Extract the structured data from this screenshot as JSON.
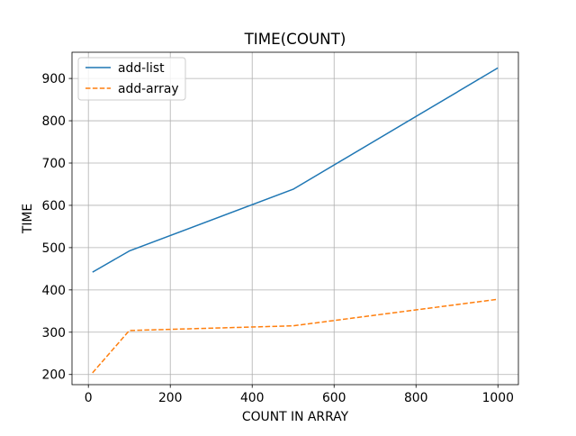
{
  "chart_data": {
    "type": "line",
    "title": "TIME(COUNT)",
    "xlabel": "COUNT IN ARRAY",
    "ylabel": "TIME",
    "xlim": [
      -40,
      1050
    ],
    "ylim": [
      176,
      962
    ],
    "xticks": [
      0,
      200,
      400,
      600,
      800,
      1000
    ],
    "yticks": [
      200,
      300,
      400,
      500,
      600,
      700,
      800,
      900
    ],
    "grid": true,
    "legend_position": "top-left",
    "series": [
      {
        "name": "add-list",
        "color": "#1f77b4",
        "style": "solid",
        "x": [
          10,
          100,
          500,
          1000
        ],
        "y": [
          442,
          492,
          638,
          925
        ]
      },
      {
        "name": "add-array",
        "color": "#ff7f0e",
        "style": "dashed",
        "x": [
          10,
          100,
          500,
          1000
        ],
        "y": [
          204,
          304,
          315,
          378
        ]
      }
    ]
  }
}
